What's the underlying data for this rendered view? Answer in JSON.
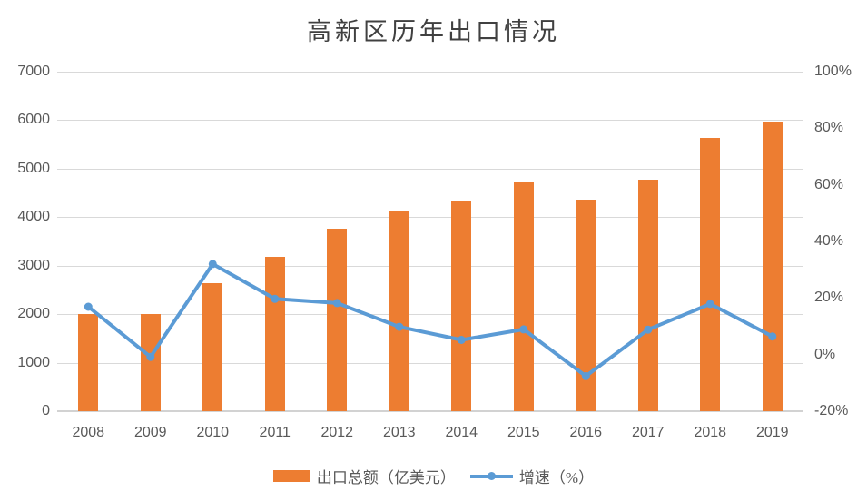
{
  "title": "高新区历年出口情况",
  "colors": {
    "bar": "#ED7D31",
    "line": "#5B9BD5",
    "gridline": "#D9D9D9",
    "axis_text": "#595959",
    "title_text": "#404040"
  },
  "legend": {
    "bar_label": "出口总额（亿美元）",
    "line_label": "增速（%）"
  },
  "chart_data": {
    "type": "bar",
    "subtype": "combo bar+line, dual axis",
    "title": "高新区历年出口情况",
    "categories": [
      "2008",
      "2009",
      "2010",
      "2011",
      "2012",
      "2013",
      "2014",
      "2015",
      "2016",
      "2017",
      "2018",
      "2019"
    ],
    "series": [
      {
        "name": "出口总额（亿美元）",
        "type": "bar",
        "axis": "left",
        "color": "#ED7D31",
        "values": [
          2000,
          2000,
          2630,
          3180,
          3760,
          4130,
          4330,
          4720,
          4370,
          4770,
          5630,
          5980
        ]
      },
      {
        "name": "增速（%）",
        "type": "line",
        "axis": "right",
        "color": "#5B9BD5",
        "values": [
          16.9,
          -0.8,
          32.0,
          19.7,
          18.2,
          9.8,
          5.2,
          8.9,
          -7.6,
          8.8,
          17.9,
          6.4
        ]
      }
    ],
    "left_axis": {
      "min": 0,
      "max": 7000,
      "step": 1000,
      "ticks": [
        "0",
        "1000",
        "2000",
        "3000",
        "4000",
        "5000",
        "6000",
        "7000"
      ]
    },
    "right_axis": {
      "min": -20,
      "max": 100,
      "step": 20,
      "ticks": [
        "-20%",
        "0%",
        "20%",
        "40%",
        "60%",
        "80%",
        "100%"
      ]
    },
    "grid": true,
    "legend_position": "bottom",
    "xlabel": "",
    "ylabel": ""
  }
}
